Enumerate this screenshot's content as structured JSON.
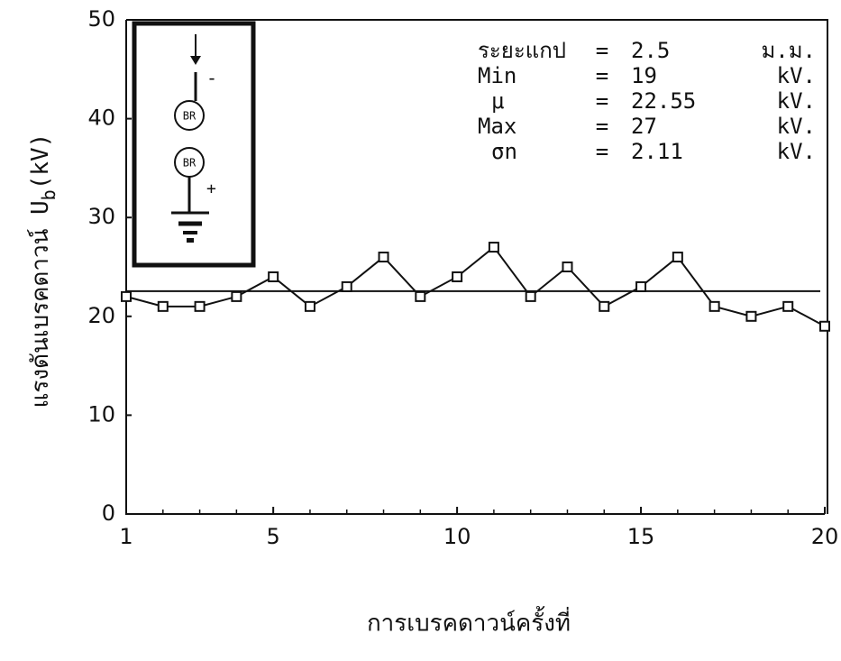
{
  "chart_data": {
    "type": "line",
    "xlabel": "การเบรคดาวน์ครั้งที่",
    "ylabel": {
      "text": "แรงดันเบรคดาวน์ U",
      "subscript": "b",
      "unit": "(kV)"
    },
    "x": [
      1,
      2,
      3,
      4,
      5,
      6,
      7,
      8,
      9,
      10,
      11,
      12,
      13,
      14,
      15,
      16,
      17,
      18,
      19,
      20
    ],
    "series": [
      {
        "color": "#111111",
        "values": [
          22,
          21,
          21,
          22,
          24,
          21,
          23,
          26,
          22,
          24,
          27,
          22,
          25,
          21,
          23,
          26,
          21,
          20,
          21,
          19
        ]
      }
    ],
    "xlim": [
      1,
      20
    ],
    "xticks": [
      1,
      5,
      10,
      15,
      20
    ],
    "ylim": [
      0,
      50
    ],
    "yticks": [
      0,
      10,
      20,
      30,
      40,
      50
    ],
    "annotations": [
      {
        "label": "ระยะแกป",
        "sign": "=",
        "value": 2.5,
        "unit": "ม.ม."
      },
      {
        "label": "Min",
        "sign": "=",
        "value": 19,
        "unit": "kV."
      },
      {
        "label": "μ",
        "sign": "=",
        "value": 22.55,
        "unit": "kV."
      },
      {
        "label": "Max",
        "sign": "=",
        "value": 27,
        "unit": "kV."
      },
      {
        "label": "σn",
        "sign": "=",
        "value": 2.11,
        "unit": "kV."
      }
    ],
    "inset": {
      "labels": [
        "BR",
        "BR"
      ],
      "polarity": [
        "-",
        "+"
      ]
    }
  }
}
